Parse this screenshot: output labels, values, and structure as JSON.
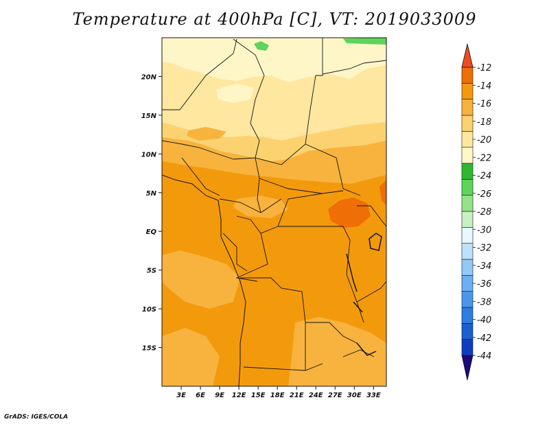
{
  "title": "Temperature at 400hPa [C], VT: 2019033009",
  "credit": "GrADS: IGES/COLA",
  "map": {
    "lon_range": [
      0,
      35
    ],
    "lat_range": [
      -20,
      25
    ],
    "lon_ticks": [
      {
        "lon": 3,
        "label": "3E"
      },
      {
        "lon": 6,
        "label": "6E"
      },
      {
        "lon": 9,
        "label": "9E"
      },
      {
        "lon": 12,
        "label": "12E"
      },
      {
        "lon": 15,
        "label": "15E"
      },
      {
        "lon": 18,
        "label": "18E"
      },
      {
        "lon": 21,
        "label": "21E"
      },
      {
        "lon": 24,
        "label": "24E"
      },
      {
        "lon": 27,
        "label": "27E"
      },
      {
        "lon": 30,
        "label": "30E"
      },
      {
        "lon": 33,
        "label": "33E"
      }
    ],
    "lat_ticks": [
      {
        "lat": 20,
        "label": "20N"
      },
      {
        "lat": 15,
        "label": "15N"
      },
      {
        "lat": 10,
        "label": "10N"
      },
      {
        "lat": 5,
        "label": "5N"
      },
      {
        "lat": 0,
        "label": "EQ"
      },
      {
        "lat": -5,
        "label": "5S"
      },
      {
        "lat": -10,
        "label": "10S"
      },
      {
        "lat": -15,
        "label": "15S"
      }
    ]
  },
  "colorbar": {
    "colors": [
      "#1a0a7a",
      "#0f3dc0",
      "#1a5ed0",
      "#2e7de0",
      "#4a96eb",
      "#6ab0f2",
      "#92c9f7",
      "#bde0fb",
      "#e6f7ff",
      "#c8f0c0",
      "#94e288",
      "#5ed45a",
      "#2eb831",
      "#fff6c8",
      "#ffe7a0",
      "#fcd270",
      "#f7b33e",
      "#f39a0c",
      "#ef6e05",
      "#f04a1e"
    ],
    "labels": [
      "-44",
      "-42",
      "-40",
      "-38",
      "-36",
      "-34",
      "-32",
      "-30",
      "-28",
      "-26",
      "-24",
      "-22",
      "-20",
      "-18",
      "-16",
      "-14",
      "-12"
    ]
  },
  "fields": {
    "c_m22": "#fff6c8",
    "c_m20": "#ffe7a0",
    "c_m18": "#fcd270",
    "c_m16": "#f7b33e",
    "c_m14": "#f39a0c",
    "c_m12": "#ef6e05",
    "c_green": "#5ed45a"
  }
}
